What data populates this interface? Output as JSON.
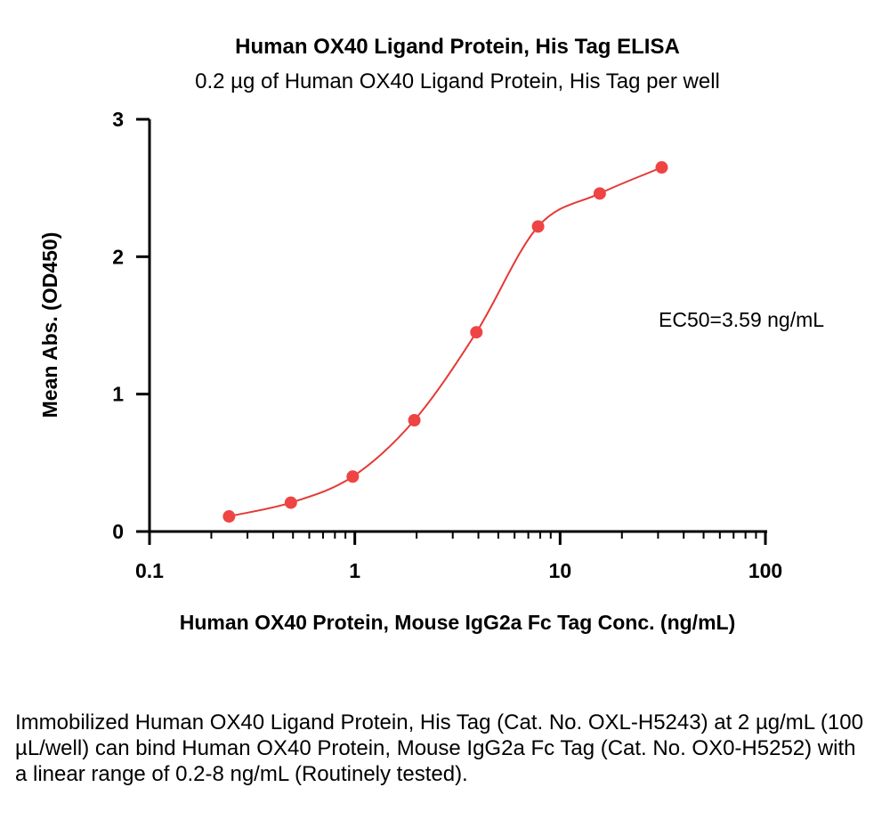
{
  "chart_data": {
    "type": "scatter",
    "title": "Human OX40 Ligand Protein, His Tag ELISA",
    "subtitle": "0.2 µg of Human OX40 Ligand Protein, His Tag per well",
    "xlabel": "Human OX40 Protein, Mouse IgG2a Fc Tag Conc. (ng/mL)",
    "ylabel": "Mean Abs. (OD450)",
    "x_scale": "log",
    "xlim": [
      0.1,
      100
    ],
    "ylim": [
      0,
      3
    ],
    "x_ticks": [
      "0.1",
      "1",
      "10",
      "100"
    ],
    "y_ticks": [
      "0",
      "1",
      "2",
      "3"
    ],
    "grid": false,
    "point_color": "#ef4444",
    "curve_color": "#e53935",
    "points": [
      {
        "x": 0.244,
        "y": 0.11
      },
      {
        "x": 0.488,
        "y": 0.21
      },
      {
        "x": 0.977,
        "y": 0.4
      },
      {
        "x": 1.95,
        "y": 0.81
      },
      {
        "x": 3.91,
        "y": 1.45
      },
      {
        "x": 7.81,
        "y": 2.22
      },
      {
        "x": 15.6,
        "y": 2.46
      },
      {
        "x": 31.25,
        "y": 2.65
      }
    ],
    "annotation": "EC50=3.59 ng/mL"
  },
  "caption": "Immobilized Human OX40 Ligand Protein, His Tag (Cat. No. OXL-H5243) at 2 µg/mL (100 µL/well) can bind Human OX40 Protein, Mouse IgG2a Fc Tag (Cat. No. OX0-H5252) with a linear range of 0.2-8 ng/mL (Routinely tested)."
}
